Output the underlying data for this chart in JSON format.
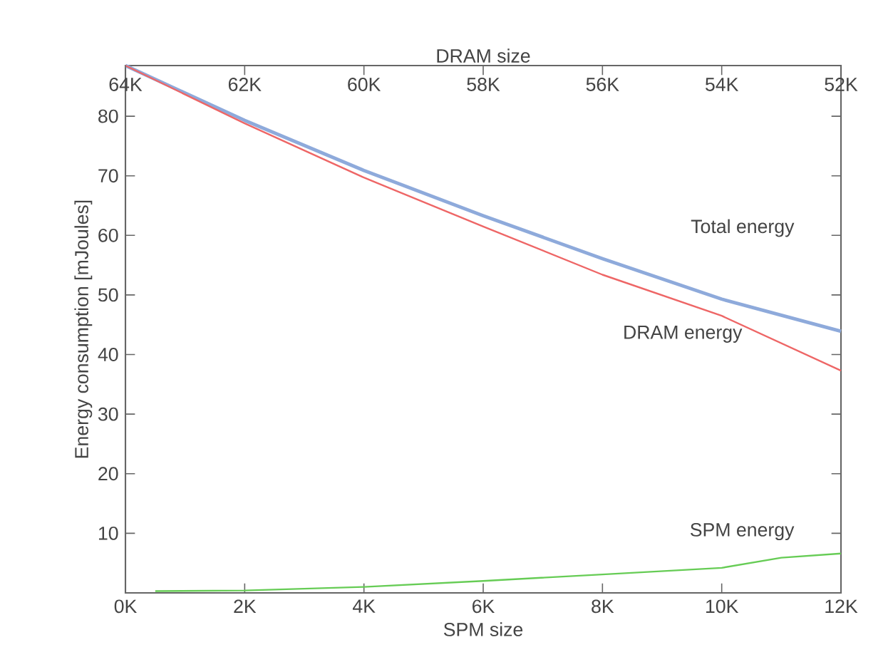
{
  "chart_data": {
    "type": "line",
    "xlabel": "SPM size",
    "ylabel": "Energy consumption [mJoules]",
    "x2label": "DRAM size",
    "xlim": [
      0,
      12
    ],
    "ylim": [
      0,
      88.5
    ],
    "x2lim": [
      64,
      52
    ],
    "xticks": [
      {
        "value": 0,
        "label": "0K"
      },
      {
        "value": 2,
        "label": "2K"
      },
      {
        "value": 4,
        "label": "4K"
      },
      {
        "value": 6,
        "label": "6K"
      },
      {
        "value": 8,
        "label": "8K"
      },
      {
        "value": 10,
        "label": "10K"
      },
      {
        "value": 12,
        "label": "12K"
      }
    ],
    "x2ticks": [
      {
        "value": 64,
        "label": "64K"
      },
      {
        "value": 62,
        "label": "62K"
      },
      {
        "value": 60,
        "label": "60K"
      },
      {
        "value": 58,
        "label": "58K"
      },
      {
        "value": 56,
        "label": "56K"
      },
      {
        "value": 54,
        "label": "54K"
      },
      {
        "value": 52,
        "label": "52K"
      }
    ],
    "yticks": [
      10,
      20,
      30,
      40,
      50,
      60,
      70,
      80
    ],
    "series": [
      {
        "name": "Total energy",
        "color": "#8eaadb",
        "x": [
          0,
          2,
          4,
          6,
          8,
          10,
          11,
          12
        ],
        "values": [
          88.5,
          79.3,
          70.9,
          63.3,
          56.1,
          49.3,
          46.6,
          43.9
        ]
      },
      {
        "name": "DRAM energy",
        "color": "#ee6666",
        "x": [
          0,
          2,
          4,
          6,
          8,
          10,
          12
        ],
        "values": [
          88.5,
          78.8,
          69.7,
          61.5,
          53.4,
          46.5,
          37.3
        ]
      },
      {
        "name": "SPM energy",
        "color": "#66cc55",
        "x": [
          0.5,
          2,
          4,
          6,
          8,
          10,
          11,
          12
        ],
        "values": [
          0.3,
          0.4,
          1.0,
          2.0,
          3.1,
          4.2,
          5.9,
          6.6
        ]
      }
    ]
  }
}
